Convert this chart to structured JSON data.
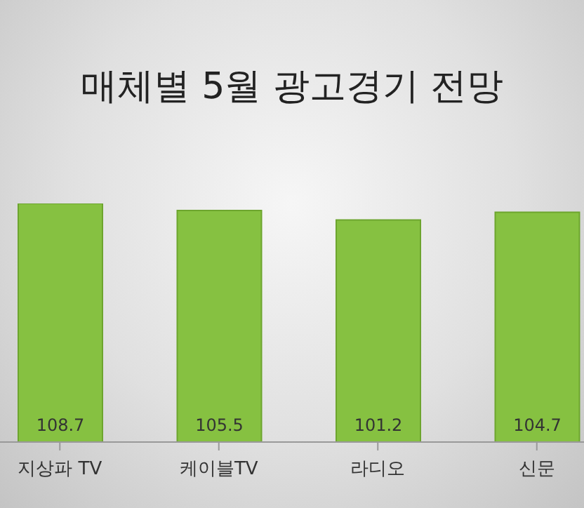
{
  "chart_data": {
    "type": "bar",
    "title": "매체별 5월 광고경기 전망",
    "categories": [
      "지상파 TV",
      "케이블TV",
      "라디오",
      "신문"
    ],
    "values": [
      108.7,
      105.5,
      101.2,
      104.7
    ],
    "color": "#86c141",
    "data_labels": true,
    "grid": false,
    "legend": false
  }
}
